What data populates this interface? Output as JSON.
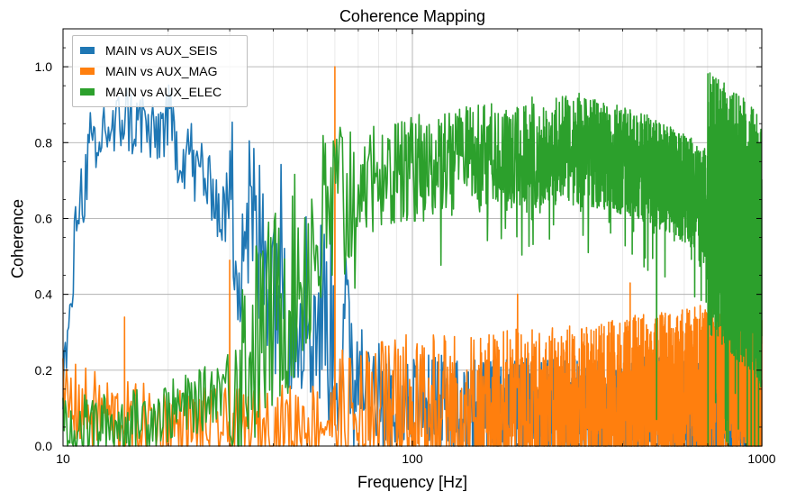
{
  "chart_data": {
    "type": "line",
    "title": "Coherence Mapping",
    "xlabel": "Frequency [Hz]",
    "ylabel": "Coherence",
    "xscale": "log",
    "xlim": [
      10,
      1000
    ],
    "ylim": [
      0.0,
      1.1
    ],
    "x_major_ticks": [
      {
        "value": 10,
        "label": "10"
      },
      {
        "value": 100,
        "label": "100"
      },
      {
        "value": 1000,
        "label": "1000"
      }
    ],
    "y_ticks": [
      {
        "value": 0.0,
        "label": "0.0"
      },
      {
        "value": 0.2,
        "label": "0.2"
      },
      {
        "value": 0.4,
        "label": "0.4"
      },
      {
        "value": 0.6,
        "label": "0.6"
      },
      {
        "value": 0.8,
        "label": "0.8"
      },
      {
        "value": 1.0,
        "label": "1.0"
      }
    ],
    "grid": true,
    "legend_position": "top-left",
    "series": [
      {
        "name": "MAIN vs AUX_SEIS",
        "color": "#1f77b4",
        "points": [
          [
            10,
            0.18
          ],
          [
            10.5,
            0.32
          ],
          [
            11,
            0.65
          ],
          [
            11.5,
            0.68
          ],
          [
            12,
            0.8
          ],
          [
            12.5,
            0.72
          ],
          [
            13,
            0.85
          ],
          [
            14,
            0.82
          ],
          [
            15,
            0.88
          ],
          [
            16,
            0.84
          ],
          [
            17,
            0.86
          ],
          [
            18,
            0.8
          ],
          [
            19,
            0.84
          ],
          [
            20,
            0.86
          ],
          [
            21,
            0.8
          ],
          [
            22,
            0.76
          ],
          [
            23,
            0.8
          ],
          [
            24,
            0.7
          ],
          [
            25,
            0.75
          ],
          [
            26,
            0.66
          ],
          [
            27,
            0.7
          ],
          [
            28,
            0.6
          ],
          [
            30,
            0.64
          ],
          [
            32,
            0.56
          ],
          [
            34,
            0.62
          ],
          [
            36,
            0.5
          ],
          [
            38,
            0.55
          ],
          [
            40,
            0.46
          ],
          [
            42,
            0.5
          ],
          [
            45,
            0.38
          ],
          [
            48,
            0.42
          ],
          [
            52,
            0.32
          ],
          [
            56,
            0.36
          ],
          [
            60,
            0.28
          ],
          [
            65,
            0.24
          ],
          [
            70,
            0.2
          ],
          [
            80,
            0.15
          ],
          [
            90,
            0.13
          ],
          [
            100,
            0.12
          ],
          [
            130,
            0.11
          ],
          [
            160,
            0.1
          ],
          [
            200,
            0.11
          ],
          [
            260,
            0.1
          ],
          [
            320,
            0.11
          ],
          [
            400,
            0.1
          ],
          [
            500,
            0.11
          ],
          [
            650,
            0.1
          ],
          [
            800,
            0.11
          ],
          [
            1000,
            0.1
          ]
        ],
        "noise": [
          {
            "x": [
              10,
              30
            ],
            "spread": 0.07
          },
          {
            "x": [
              30,
              70
            ],
            "spread": 0.2
          },
          {
            "x": [
              70,
              1000
            ],
            "spread": 0.08
          }
        ]
      },
      {
        "name": "MAIN vs AUX_MAG",
        "color": "#ff7f0e",
        "points": [
          [
            10,
            0.12
          ],
          [
            15,
            0.06
          ],
          [
            20,
            0.05
          ],
          [
            30,
            0.04
          ],
          [
            40,
            0.05
          ],
          [
            50,
            0.06
          ],
          [
            60,
            0.07
          ],
          [
            70,
            0.08
          ],
          [
            80,
            0.08
          ],
          [
            100,
            0.09
          ],
          [
            150,
            0.1
          ],
          [
            200,
            0.1
          ],
          [
            300,
            0.11
          ],
          [
            400,
            0.13
          ],
          [
            500,
            0.15
          ],
          [
            600,
            0.16
          ],
          [
            700,
            0.17
          ],
          [
            800,
            0.18
          ],
          [
            900,
            0.19
          ],
          [
            1000,
            0.18
          ]
        ],
        "noise": [
          {
            "x": [
              10,
              60
            ],
            "spread": 0.08
          },
          {
            "x": [
              60,
              1000
            ],
            "spread": 0.13
          }
        ],
        "spikes": [
          {
            "x": 60,
            "y": 1.0
          },
          {
            "x": 30,
            "y": 0.49
          },
          {
            "x": 15,
            "y": 0.34
          },
          {
            "x": 200,
            "y": 0.4
          },
          {
            "x": 420,
            "y": 0.43
          }
        ]
      },
      {
        "name": "MAIN vs AUX_ELEC",
        "color": "#2ca02c",
        "points": [
          [
            10,
            0.05
          ],
          [
            15,
            0.06
          ],
          [
            20,
            0.09
          ],
          [
            25,
            0.12
          ],
          [
            30,
            0.18
          ],
          [
            35,
            0.26
          ],
          [
            40,
            0.35
          ],
          [
            45,
            0.42
          ],
          [
            50,
            0.5
          ],
          [
            55,
            0.56
          ],
          [
            60,
            0.62
          ],
          [
            70,
            0.68
          ],
          [
            80,
            0.71
          ],
          [
            100,
            0.73
          ],
          [
            130,
            0.75
          ],
          [
            170,
            0.76
          ],
          [
            220,
            0.77
          ],
          [
            280,
            0.78
          ],
          [
            350,
            0.77
          ],
          [
            450,
            0.74
          ],
          [
            550,
            0.7
          ],
          [
            650,
            0.66
          ],
          [
            750,
            0.62
          ],
          [
            850,
            0.58
          ],
          [
            950,
            0.54
          ],
          [
            1000,
            0.5
          ]
        ],
        "noise": [
          {
            "x": [
              10,
              30
            ],
            "spread": 0.06
          },
          {
            "x": [
              30,
              70
            ],
            "spread": 0.2
          },
          {
            "x": [
              70,
              700
            ],
            "spread": 0.09
          },
          {
            "x": [
              700,
              1000
            ],
            "spread": 0.22
          }
        ],
        "spikes": [
          {
            "x": 300,
            "y": 0.93
          },
          {
            "x": 500,
            "y": 0.07
          },
          {
            "x": 220,
            "y": 0.92
          }
        ]
      }
    ]
  },
  "legend": {
    "items": [
      {
        "label": "MAIN vs AUX_SEIS",
        "color": "#1f77b4"
      },
      {
        "label": "MAIN vs AUX_MAG",
        "color": "#ff7f0e"
      },
      {
        "label": "MAIN vs AUX_ELEC",
        "color": "#2ca02c"
      }
    ]
  }
}
